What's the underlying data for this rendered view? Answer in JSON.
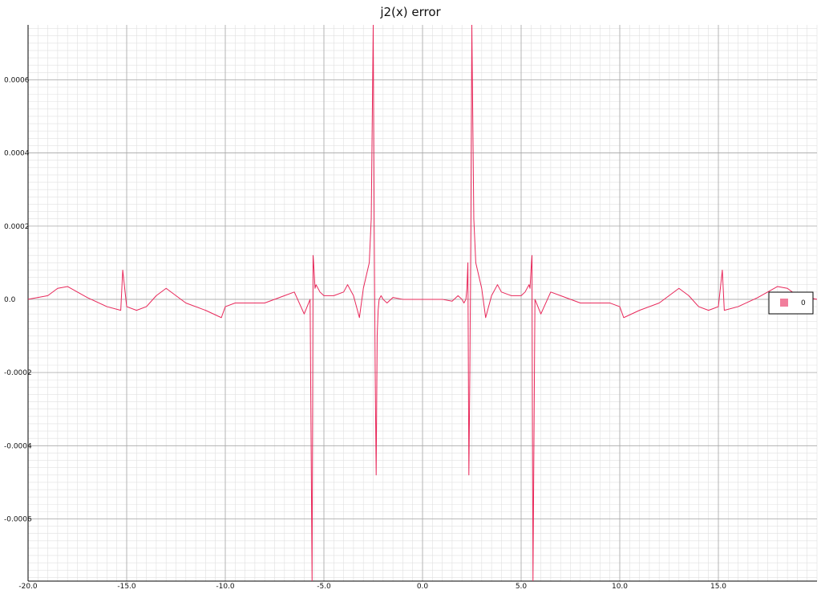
{
  "chart_data": {
    "type": "line",
    "title": "j2(x) error",
    "xlabel": "",
    "ylabel": "",
    "xlim": [
      -20,
      20
    ],
    "ylim": [
      -0.00077,
      0.00075
    ],
    "grid": true,
    "legend_position": "right",
    "x_ticks": [
      -20,
      -15,
      -10,
      -5,
      0,
      5,
      10,
      15
    ],
    "x_tick_labels": [
      "-20.0",
      "-15.0",
      "-10.0",
      "-5.0",
      "0.0",
      "5.0",
      "10.0",
      "15.0"
    ],
    "y_ticks": [
      0.0006,
      0.0004,
      0.0002,
      0,
      -0.0002,
      -0.0004,
      -0.0006
    ],
    "y_tick_labels": [
      "0.0006",
      "0.0004",
      "0.0002",
      "0.0",
      "-0.0002",
      "-0.0004",
      "-0.0006"
    ],
    "series": [
      {
        "name": "0",
        "color": "#e8285a",
        "x": [
          -20,
          -19,
          -18.5,
          -18,
          -17.5,
          -17,
          -16,
          -15.3,
          -15.2,
          -15,
          -14.5,
          -14,
          -13.5,
          -13,
          -12.5,
          -12,
          -11,
          -10.2,
          -10,
          -9.5,
          -9,
          -8,
          -7,
          -6.5,
          -6,
          -5.7,
          -5.6,
          -5.55,
          -5.5,
          -5.45,
          -5.4,
          -5.2,
          -5,
          -4.5,
          -4,
          -3.8,
          -3.5,
          -3.2,
          -3,
          -2.7,
          -2.6,
          -2.5,
          -2.45,
          -2.4,
          -2.35,
          -2.3,
          -2.25,
          -2.2,
          -2.1,
          -2,
          -1.8,
          -1.5,
          -1,
          -0.5,
          0,
          0.5,
          1,
          1.5,
          1.8,
          2,
          2.1,
          2.2,
          2.25,
          2.3,
          2.35,
          2.4,
          2.45,
          2.5,
          2.6,
          2.7,
          3,
          3.2,
          3.5,
          3.8,
          4,
          4.5,
          5,
          5.2,
          5.4,
          5.45,
          5.5,
          5.55,
          5.6,
          5.7,
          6,
          6.5,
          7,
          8,
          9,
          9.5,
          10,
          10.2,
          11,
          12,
          12.5,
          13,
          13.5,
          14,
          14.5,
          15,
          15.2,
          15.3,
          16,
          17,
          17.5,
          18,
          18.5,
          19,
          20
        ],
        "y": [
          0,
          1e-05,
          3e-05,
          3.5e-05,
          2e-05,
          5e-06,
          -2e-05,
          -3e-05,
          8e-05,
          -2e-05,
          -3e-05,
          -2e-05,
          1e-05,
          3e-05,
          1e-05,
          -1e-05,
          -3e-05,
          -5e-05,
          -2e-05,
          -1e-05,
          -1e-05,
          -1e-05,
          1e-05,
          2e-05,
          -4e-05,
          0,
          -0.00077,
          0.00012,
          8e-05,
          3e-05,
          4e-05,
          2e-05,
          1e-05,
          1e-05,
          2e-05,
          4e-05,
          1e-05,
          -5e-05,
          3e-05,
          0.0001,
          0.00022,
          0.00075,
          0.0002,
          -0.0002,
          -0.00048,
          -0.0001,
          -3e-05,
          0,
          1e-05,
          0,
          -1e-05,
          5e-06,
          0,
          0,
          0,
          0,
          0,
          -5e-06,
          1e-05,
          0,
          -1e-05,
          0,
          3e-05,
          0.0001,
          -0.00048,
          -0.0002,
          0.0002,
          0.00075,
          0.00022,
          0.0001,
          3e-05,
          -5e-05,
          1e-05,
          4e-05,
          2e-05,
          1e-05,
          1e-05,
          2e-05,
          4e-05,
          3e-05,
          8e-05,
          0.00012,
          -0.00077,
          0,
          -4e-05,
          2e-05,
          1e-05,
          -1e-05,
          -1e-05,
          -1e-05,
          -2e-05,
          -5e-05,
          -3e-05,
          -1e-05,
          1e-05,
          3e-05,
          1e-05,
          -2e-05,
          -3e-05,
          -2e-05,
          8e-05,
          -3e-05,
          -2e-05,
          5e-06,
          2e-05,
          3.5e-05,
          3e-05,
          1e-05,
          0
        ]
      }
    ]
  }
}
